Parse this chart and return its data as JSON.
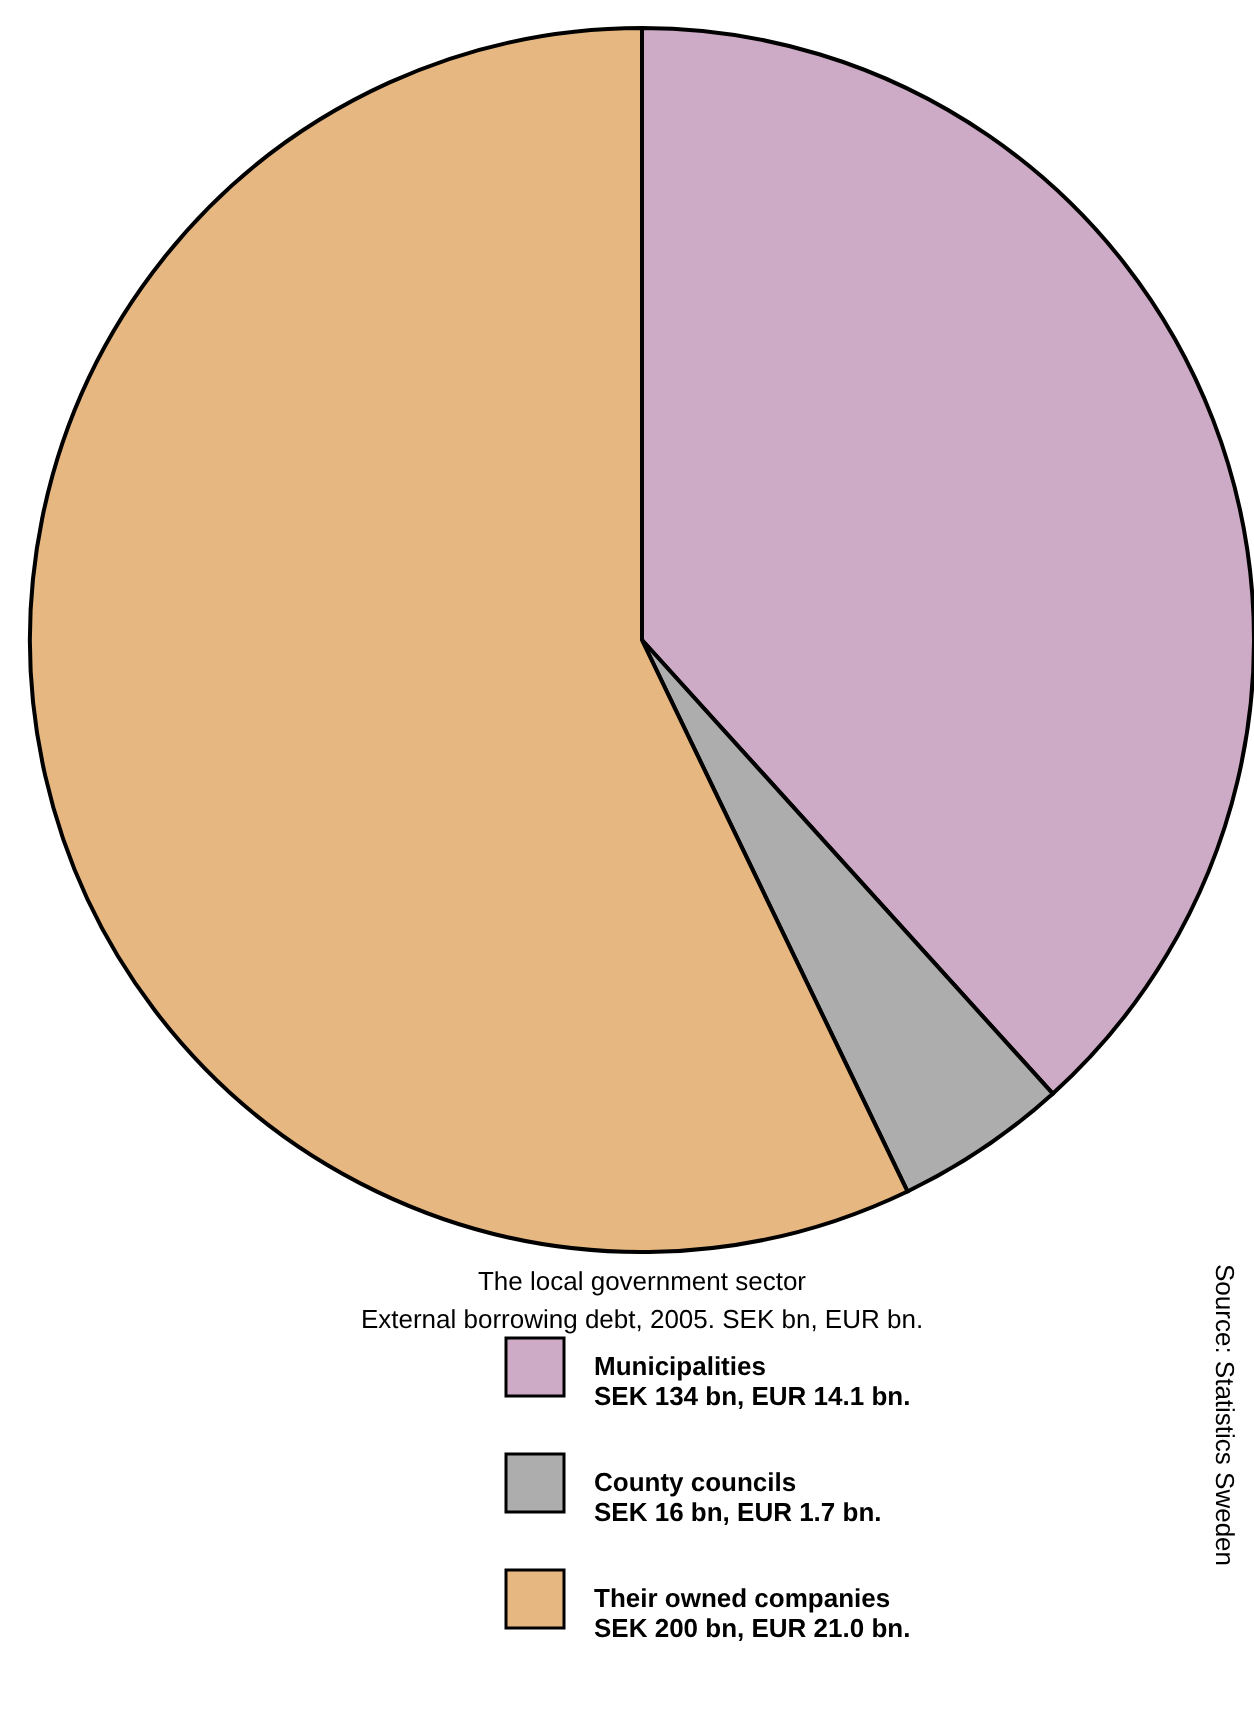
{
  "chart_data": {
    "type": "pie",
    "title": "The local government sector",
    "subtitle": "External borrowing debt, 2005. SEK bn, EUR bn.",
    "categories": [
      "Municipalities",
      "County councils",
      "Their owned companies"
    ],
    "values": [
      38.29,
      4.57,
      57.14
    ],
    "value_labels": [
      "SEK 134 bn, EUR 14.1 bn.",
      "SEK 16 bn, EUR 1.7 bn.",
      "SEK 200 bn, EUR 21.0 bn."
    ],
    "colors": [
      "#cdaac5",
      "#adadad",
      "#e6b780"
    ],
    "legend": "bottom",
    "annotations": [
      "Source: Statistics Sweden"
    ]
  }
}
